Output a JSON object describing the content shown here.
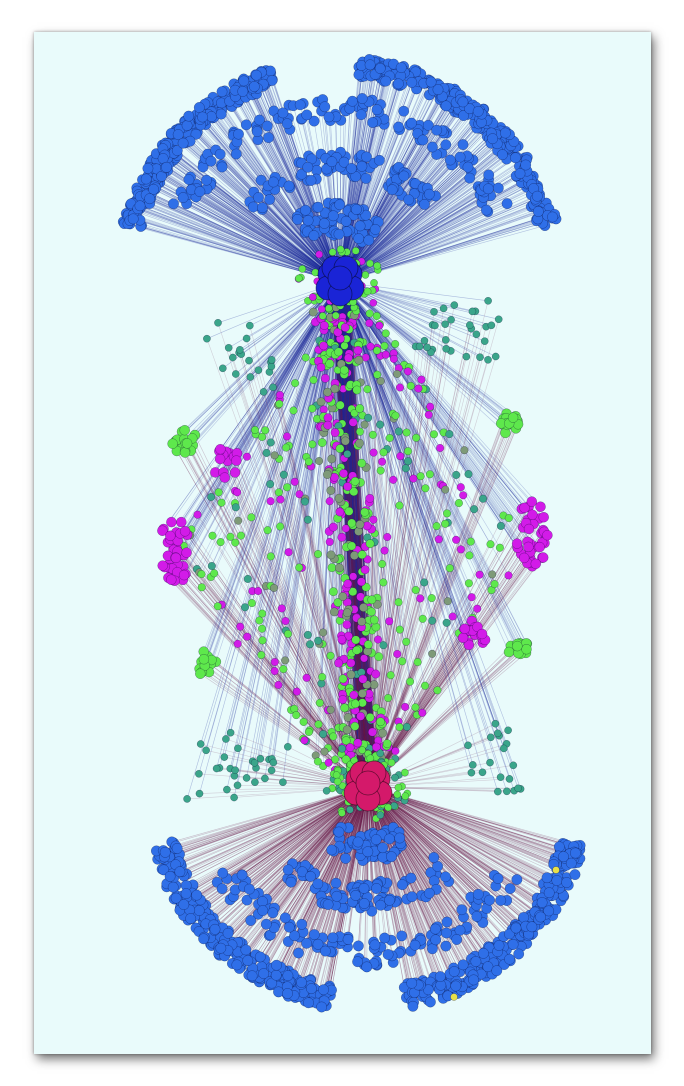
{
  "figure": {
    "kind": "network-graph",
    "background": "#e9fbfb",
    "hubs": [
      {
        "id": "hub-top",
        "color": "#1a24d6",
        "edge_color": "#1a1f8c"
      },
      {
        "id": "hub-bottom",
        "color": "#d4196a",
        "edge_color": "#6e1a45"
      }
    ],
    "node_colors": {
      "peripheral": "#2f6fe8",
      "magenta": "#d21be8",
      "green": "#5ee84c",
      "teal": "#3aa58a",
      "olive": "#7e9a78",
      "yellow": "#e8e04a"
    },
    "edge_colors": {
      "blue": "#1e2a9a",
      "maroon": "#6a1d4a"
    }
  }
}
